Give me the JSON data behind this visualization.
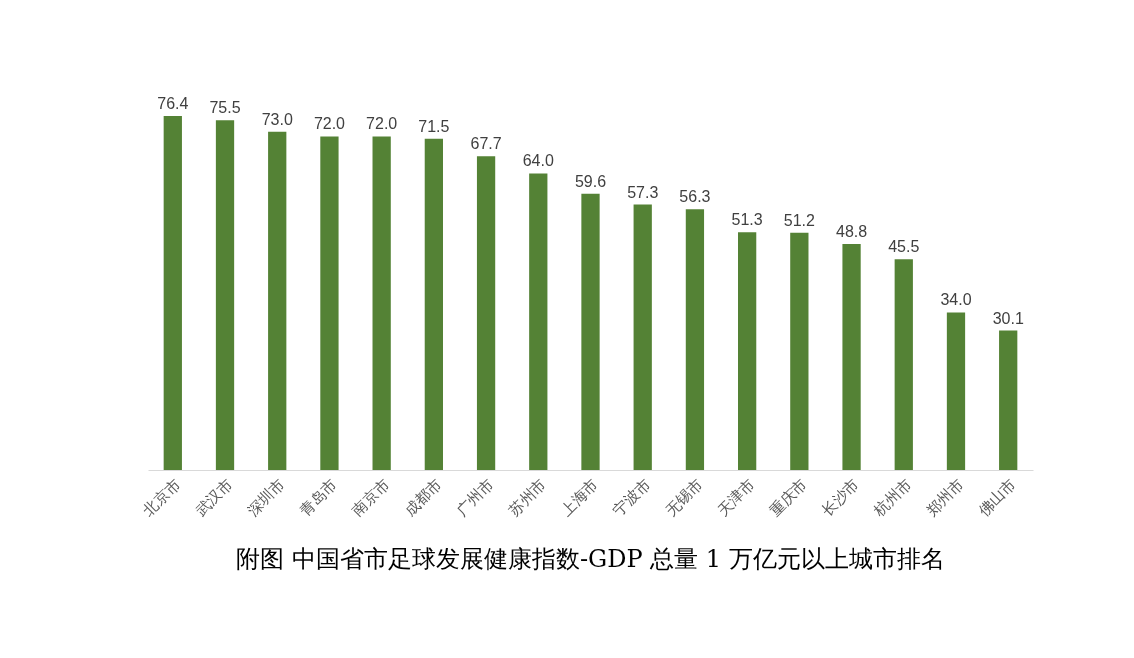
{
  "chart_data": {
    "type": "bar",
    "title": "附图 中国省市足球发展健康指数-GDP 总量 1 万亿元以上城市排名",
    "categories": [
      "北京市",
      "武汉市",
      "深圳市",
      "青岛市",
      "南京市",
      "成都市",
      "广州市",
      "苏州市",
      "上海市",
      "宁波市",
      "无锡市",
      "天津市",
      "重庆市",
      "长沙市",
      "杭州市",
      "郑州市",
      "佛山市"
    ],
    "values": [
      76.4,
      75.5,
      73.0,
      72.0,
      72.0,
      71.5,
      67.7,
      64.0,
      59.6,
      57.3,
      56.3,
      51.3,
      51.2,
      48.8,
      45.5,
      34.0,
      30.1
    ],
    "value_labels": [
      "76.4",
      "75.5",
      "73.0",
      "72.0",
      "72.0",
      "71.5",
      "67.7",
      "64.0",
      "59.6",
      "57.3",
      "56.3",
      "51.3",
      "51.2",
      "48.8",
      "45.5",
      "34.0",
      "30.1"
    ],
    "color": "#548235",
    "grid": false
  }
}
